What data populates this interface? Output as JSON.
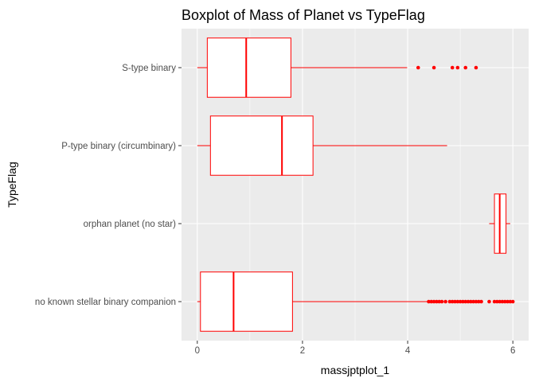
{
  "chart_data": {
    "type": "boxplot",
    "orientation": "horizontal",
    "title": "Boxplot of Mass of Planet vs TypeFlag",
    "xlabel": "massjptplot_1",
    "ylabel": "TypeFlag",
    "xlim": [
      -0.3,
      6.3
    ],
    "xticks": [
      0,
      2,
      4,
      6
    ],
    "grid": true,
    "legend": "none",
    "categories": [
      "no known stellar binary companion",
      "orphan planet (no star)",
      "P-type binary (circumbinary)",
      "S-type binary"
    ],
    "boxes": [
      {
        "category": "no known stellar binary companion",
        "whisker_low": 0.0,
        "q1": 0.06,
        "median": 0.69,
        "q3": 1.81,
        "whisker_high": 4.37,
        "outliers": [
          4.4,
          4.45,
          4.5,
          4.55,
          4.6,
          4.65,
          4.72,
          4.8,
          4.85,
          4.9,
          4.95,
          5.0,
          5.05,
          5.1,
          5.15,
          5.2,
          5.25,
          5.3,
          5.35,
          5.4,
          5.55,
          5.65,
          5.7,
          5.75,
          5.8,
          5.85,
          5.9,
          5.95,
          6.0
        ]
      },
      {
        "category": "orphan planet (no star)",
        "whisker_low": 5.55,
        "q1": 5.65,
        "median": 5.75,
        "q3": 5.87,
        "whisker_high": 5.95,
        "outliers": []
      },
      {
        "category": "P-type binary (circumbinary)",
        "whisker_low": 0.0,
        "q1": 0.25,
        "median": 1.61,
        "q3": 2.2,
        "whisker_high": 4.75,
        "outliers": []
      },
      {
        "category": "S-type binary",
        "whisker_low": 0.0,
        "q1": 0.19,
        "median": 0.93,
        "q3": 1.78,
        "whisker_high": 3.99,
        "outliers": [
          4.2,
          4.5,
          4.85,
          4.95,
          5.1,
          5.3
        ]
      }
    ],
    "colors": {
      "box_line": "#ff0000",
      "box_fill": "#ffffff",
      "panel_bg": "#ebebeb",
      "grid_major": "#ffffff",
      "tick_text": "#4d4d4d"
    }
  }
}
